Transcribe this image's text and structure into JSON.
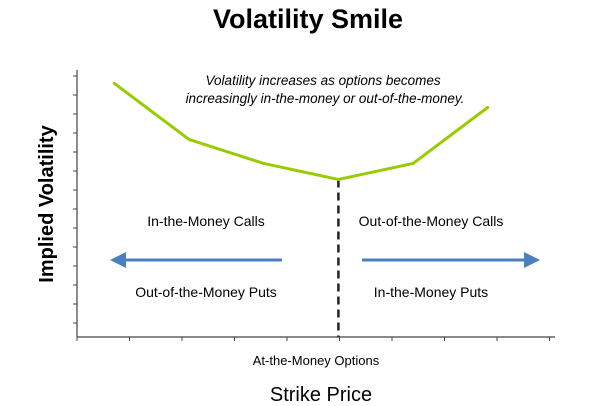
{
  "chart_data": {
    "type": "line",
    "title": "Volatility Smile",
    "xlabel": "Strike Price",
    "ylabel": "Implied Volatility",
    "annotation": "Volatility increases as options becomes\nincreasingly in-the-money or out-of-the-money.",
    "x_marker_label": "At-the-Money Options",
    "left_region": {
      "top": "In-the-Money Calls",
      "bottom": "Out-of-the-Money Puts"
    },
    "right_region": {
      "top": "Out-of-the-Money Calls",
      "bottom": "In-the-Money Puts"
    },
    "x": [
      1,
      2,
      3,
      4,
      5,
      6
    ],
    "values": [
      9.5,
      7.4,
      6.5,
      5.9,
      6.5,
      8.6
    ],
    "atm_x": 4,
    "xlim": [
      0.5,
      6.9
    ],
    "ylim": [
      0,
      10
    ],
    "line_color": "#99cc00",
    "arrow_color": "#4a80bf",
    "grid": false
  }
}
